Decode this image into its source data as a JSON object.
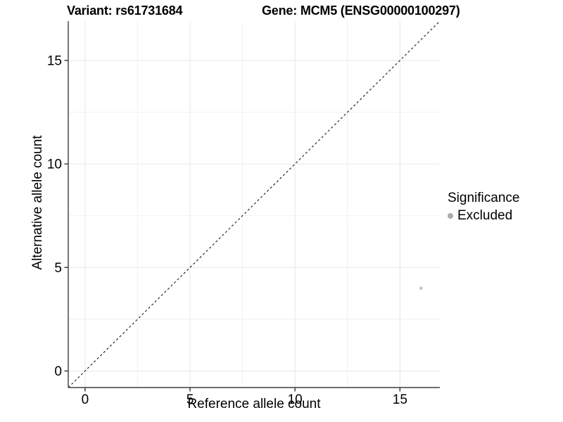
{
  "header": {
    "variant_title": "Variant: rs61731684",
    "gene_title": "Gene: MCM5 (ENSG00000100297)"
  },
  "chart_data": {
    "type": "scatter",
    "title": "Variant: rs61731684    Gene: MCM5 (ENSG00000100297)",
    "xlabel": "Reference allele count",
    "ylabel": "Alternative allele count",
    "xlim": [
      -0.8,
      16.9
    ],
    "ylim": [
      -0.8,
      16.9
    ],
    "xticks": [
      0,
      5,
      10,
      15
    ],
    "yticks": [
      0,
      5,
      10,
      15
    ],
    "minor_ticks": [
      2.5,
      7.5,
      12.5
    ],
    "grid": true,
    "reference_line": {
      "type": "identity",
      "style": "dashed",
      "color": "#1a1a1a"
    },
    "series": [
      {
        "name": "Excluded",
        "color": "#c3c3c3",
        "marker_size": 2.3,
        "points": [
          [
            16,
            4
          ]
        ]
      }
    ],
    "legend": {
      "title": "Significance",
      "position": "right",
      "items": [
        {
          "label": "Excluded",
          "color": "#ababab"
        }
      ]
    }
  }
}
